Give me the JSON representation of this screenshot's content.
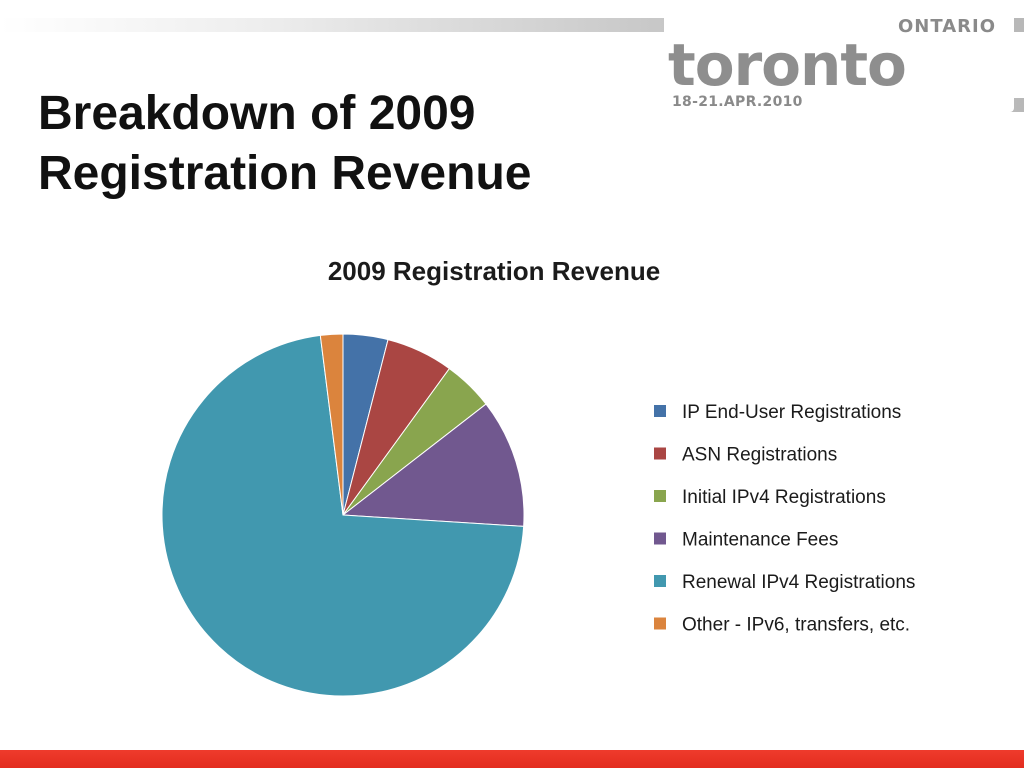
{
  "slide": {
    "title_line1": "Breakdown of 2009",
    "title_line2": "Registration Revenue",
    "logo": {
      "ontario": "ONTARIO",
      "main": "toronto",
      "dates": "18-21.APR.2010"
    }
  },
  "chart_data": {
    "type": "pie",
    "title": "2009 Registration Revenue",
    "legend_position": "right",
    "categories": [
      "IP End-User Registrations",
      "ASN Registrations",
      "Initial IPv4 Registrations",
      "Maintenance Fees",
      "Renewal IPv4 Registrations",
      "Other - IPv6, transfers, etc."
    ],
    "values": [
      4.0,
      6.0,
      4.5,
      11.5,
      72.0,
      2.0
    ],
    "colors": [
      "#4472A8",
      "#AA4643",
      "#89A54E",
      "#71588F",
      "#4198AF",
      "#DB843D"
    ]
  }
}
